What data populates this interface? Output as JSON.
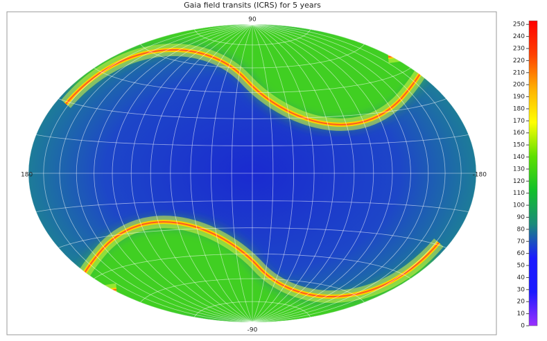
{
  "chart_data": {
    "type": "heatmap",
    "title": "Gaia field transits (ICRS) for 5 years",
    "axis_labels": {
      "top": "90",
      "bottom": "-90",
      "left": "180",
      "right": "-180"
    },
    "zlim": [
      0,
      253
    ],
    "zticks": [
      0,
      10,
      20,
      30,
      40,
      50,
      60,
      70,
      80,
      90,
      100,
      110,
      120,
      130,
      140,
      150,
      160,
      170,
      180,
      190,
      200,
      210,
      220,
      230,
      240,
      250
    ],
    "colormap": [
      "#9b30ff",
      "#1a1aff",
      "#1a1aff",
      "#1a8a7a",
      "#12c02a",
      "#5ee000",
      "#ffff00",
      "#ffb000",
      "#ff4000",
      "#ff0000"
    ],
    "grid": true
  }
}
